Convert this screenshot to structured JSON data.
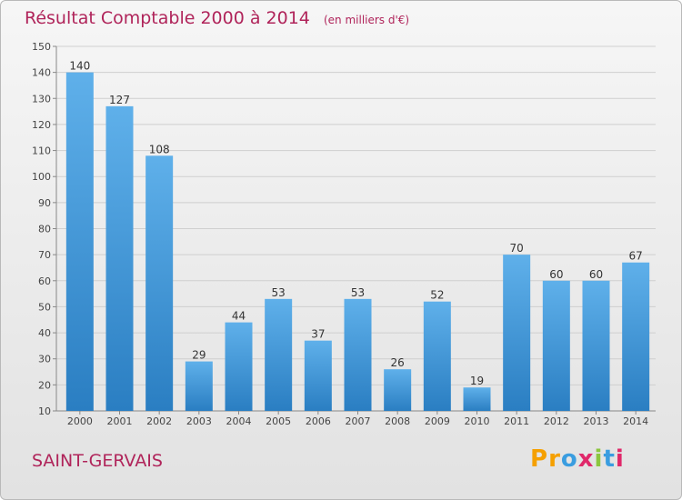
{
  "chart_data": {
    "type": "bar",
    "title": "Résultat Comptable 2000 à 2014",
    "unit_note": "(en milliers d'€)",
    "categories": [
      "2000",
      "2001",
      "2002",
      "2003",
      "2004",
      "2005",
      "2006",
      "2007",
      "2008",
      "2009",
      "2010",
      "2011",
      "2012",
      "2013",
      "2014"
    ],
    "values": [
      140,
      127,
      108,
      29,
      44,
      53,
      37,
      53,
      26,
      52,
      19,
      70,
      60,
      60,
      67
    ],
    "ylim": [
      10,
      150
    ],
    "yticks": [
      10,
      20,
      30,
      40,
      50,
      60,
      70,
      80,
      90,
      100,
      110,
      120,
      130,
      140,
      150
    ],
    "grid": true,
    "bar_color_top": "#5fb0ea",
    "bar_color_bottom": "#2a7ec2"
  },
  "footer": {
    "commune": "SAINT-GERVAIS",
    "logo_letters": [
      "P",
      "r",
      "o",
      "x",
      "i",
      "t",
      "i"
    ]
  }
}
